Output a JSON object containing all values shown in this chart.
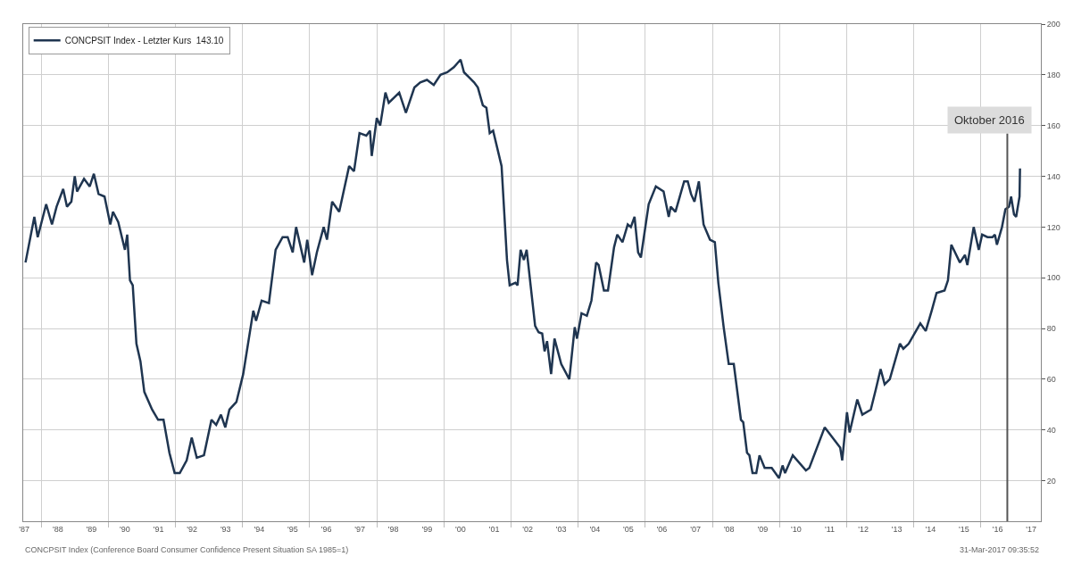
{
  "chart_data": {
    "type": "line",
    "series": [
      {
        "name": "CONCPSIT Index - Letzter Kurs  143.10",
        "color": "#1f3550",
        "x": [
          "1987-07-15",
          "1987-10-19",
          "1987-11-25",
          "1988-02-25",
          "1988-04-28",
          "1988-06-17",
          "1988-08-28",
          "1988-10-08",
          "1988-11-25",
          "1989-01-01",
          "1989-01-26",
          "1989-04-12",
          "1989-06-13",
          "1989-07-28",
          "1989-09-17",
          "1989-11-21",
          "1990-01-23",
          "1990-02-21",
          "1990-04-19",
          "1990-07-01",
          "1990-07-26",
          "1990-08-25",
          "1990-09-24",
          "1990-11-03",
          "1990-12-17",
          "1991-01-28",
          "1991-04-23",
          "1991-06-27",
          "1991-08-25",
          "1991-10-28",
          "1991-12-24",
          "1992-02-18",
          "1992-05-03",
          "1992-06-27",
          "1992-08-21",
          "1992-11-07",
          "1993-01-28",
          "1993-03-20",
          "1993-05-11",
          "1993-06-27",
          "1993-08-11",
          "1993-10-26",
          "1994-01-08",
          "1994-04-28",
          "1994-05-28",
          "1994-07-28",
          "1994-10-15",
          "1994-12-27",
          "1995-03-13",
          "1995-05-07",
          "1995-07-01",
          "1995-08-07",
          "1995-11-03",
          "1995-12-06",
          "1996-01-28",
          "1996-03-20",
          "1996-06-02",
          "1996-07-08",
          "1996-09-02",
          "1996-11-18",
          "1997-03-06",
          "1997-04-28",
          "1997-06-27",
          "1997-09-09",
          "1997-10-19",
          "1997-11-07",
          "1998-01-01",
          "1998-02-07",
          "1998-04-05",
          "1998-05-11",
          "1998-09-02",
          "1998-11-14",
          "1999-02-14",
          "1999-04-19",
          "1999-07-01",
          "1999-09-13",
          "1999-11-25",
          "2000-02-07",
          "2000-04-19",
          "2000-07-01",
          "2000-08-07",
          "2000-10-01",
          "2000-11-25",
          "2001-01-05",
          "2001-02-28",
          "2001-04-08",
          "2001-05-14",
          "2001-06-20",
          "2001-09-20",
          "2001-11-18",
          "2001-12-17",
          "2002-02-18",
          "2002-03-13",
          "2002-04-15",
          "2002-05-21",
          "2002-06-20",
          "2002-09-20",
          "2002-10-28",
          "2002-12-06",
          "2003-01-01",
          "2003-01-28",
          "2003-03-13",
          "2003-04-19",
          "2003-07-01",
          "2003-09-27",
          "2003-11-25",
          "2003-12-20",
          "2004-02-07",
          "2004-04-05",
          "2004-05-25",
          "2004-07-15",
          "2004-08-11",
          "2004-10-08",
          "2004-11-21",
          "2005-01-26",
          "2005-03-02",
          "2005-04-28",
          "2005-06-24",
          "2005-07-28",
          "2005-09-06",
          "2005-10-15",
          "2005-11-14",
          "2006-02-07",
          "2006-04-26",
          "2006-07-19",
          "2006-09-13",
          "2006-10-05",
          "2006-11-25",
          "2007-02-28",
          "2007-04-08",
          "2007-05-14",
          "2007-06-20",
          "2007-08-07",
          "2007-09-27",
          "2007-12-06",
          "2008-01-28",
          "2008-03-06",
          "2008-05-03",
          "2008-06-27",
          "2008-08-21",
          "2008-11-07",
          "2008-12-02",
          "2009-01-12",
          "2009-02-07",
          "2009-03-13",
          "2009-04-23",
          "2009-05-28",
          "2009-07-23",
          "2009-10-08",
          "2009-12-27",
          "2010-02-03",
          "2010-03-02",
          "2010-05-25",
          "2010-10-15",
          "2010-11-21",
          "2011-05-07",
          "2011-10-23",
          "2011-11-14",
          "2012-01-05",
          "2012-02-03",
          "2012-04-26",
          "2012-06-20",
          "2012-09-20",
          "2012-11-14",
          "2013-01-05",
          "2013-02-18",
          "2013-04-15",
          "2013-08-03",
          "2013-09-09",
          "2013-11-07",
          "2014-03-13",
          "2014-05-11",
          "2014-07-15",
          "2014-09-06",
          "2014-12-02",
          "2015-01-08",
          "2015-02-14",
          "2015-05-18",
          "2015-07-12",
          "2015-08-07",
          "2015-10-15",
          "2015-12-09",
          "2016-01-15",
          "2016-03-13",
          "2016-05-07",
          "2016-06-02",
          "2016-06-24",
          "2016-08-18",
          "2016-09-24",
          "2016-11-03",
          "2016-11-25",
          "2016-12-27",
          "2017-01-19",
          "2017-02-25",
          "2017-03-02"
        ],
        "values": [
          106,
          124,
          116,
          129,
          121,
          128,
          135,
          128,
          130,
          140,
          134,
          139,
          136,
          141,
          133,
          132,
          121,
          126,
          122,
          111,
          117,
          99,
          97,
          74,
          67,
          55,
          48,
          44,
          44,
          31,
          23,
          23,
          28,
          37,
          29,
          30,
          44,
          42,
          46,
          41,
          48,
          51,
          62,
          87,
          83,
          91,
          90,
          111,
          116,
          116,
          110,
          120,
          106,
          115,
          101,
          110,
          120,
          115,
          130,
          126,
          144,
          142,
          157,
          156,
          158,
          148,
          163,
          160,
          173,
          169,
          173,
          165,
          175,
          177,
          178,
          176,
          180,
          181,
          183,
          186,
          181,
          179,
          177,
          175,
          168,
          167,
          157,
          158,
          144,
          107,
          97,
          98,
          97,
          111,
          107,
          111,
          81,
          78.5,
          78,
          71,
          75,
          62,
          76,
          66,
          60,
          80.5,
          76,
          86,
          85,
          91,
          106,
          105,
          95,
          95,
          112,
          117,
          114,
          121,
          120,
          124,
          110,
          108,
          129,
          136,
          134,
          124,
          128,
          126,
          138,
          138,
          133,
          130,
          138,
          121,
          115,
          114,
          98,
          80.5,
          66,
          66,
          44,
          43,
          31,
          30,
          23,
          23,
          30,
          25,
          25,
          21,
          26,
          23,
          30,
          24,
          25,
          41,
          33,
          28,
          47,
          39,
          52,
          46,
          48,
          56,
          64,
          58,
          60,
          74,
          72,
          74,
          82,
          79,
          87,
          94,
          95,
          99,
          113,
          106,
          109,
          105,
          120,
          111,
          117,
          116,
          116,
          117,
          113,
          120,
          127,
          128,
          132,
          125,
          124,
          132,
          143.1
        ]
      }
    ],
    "xlim": [
      "1987-06-20",
      "2017-10-15"
    ],
    "ylim": [
      4,
      200
    ],
    "xticks": [
      {
        "value": "1987-07-01",
        "label": "'87"
      },
      {
        "value": "1988-07-01",
        "label": "'88"
      },
      {
        "value": "1989-07-01",
        "label": "'89"
      },
      {
        "value": "1990-07-01",
        "label": "'90"
      },
      {
        "value": "1991-07-01",
        "label": "'91"
      },
      {
        "value": "1992-07-01",
        "label": "'92"
      },
      {
        "value": "1993-07-01",
        "label": "'93"
      },
      {
        "value": "1994-07-01",
        "label": "'94"
      },
      {
        "value": "1995-07-01",
        "label": "'95"
      },
      {
        "value": "1996-07-01",
        "label": "'96"
      },
      {
        "value": "1997-07-01",
        "label": "'97"
      },
      {
        "value": "1998-07-01",
        "label": "'98"
      },
      {
        "value": "1999-07-01",
        "label": "'99"
      },
      {
        "value": "2000-07-01",
        "label": "'00"
      },
      {
        "value": "2001-07-01",
        "label": "'01"
      },
      {
        "value": "2002-07-01",
        "label": "'02"
      },
      {
        "value": "2003-07-01",
        "label": "'03"
      },
      {
        "value": "2004-07-01",
        "label": "'04"
      },
      {
        "value": "2005-07-01",
        "label": "'05"
      },
      {
        "value": "2006-07-01",
        "label": "'06"
      },
      {
        "value": "2007-07-01",
        "label": "'07"
      },
      {
        "value": "2008-07-01",
        "label": "'08"
      },
      {
        "value": "2009-07-01",
        "label": "'09"
      },
      {
        "value": "2010-07-01",
        "label": "'10"
      },
      {
        "value": "2011-07-01",
        "label": "'11"
      },
      {
        "value": "2012-07-01",
        "label": "'12"
      },
      {
        "value": "2013-07-01",
        "label": "'13"
      },
      {
        "value": "2014-07-01",
        "label": "'14"
      },
      {
        "value": "2015-07-01",
        "label": "'15"
      },
      {
        "value": "2016-07-01",
        "label": "'16"
      },
      {
        "value": "2017-07-01",
        "label": "'17"
      }
    ],
    "yticks": [
      20,
      40,
      60,
      80,
      100,
      120,
      140,
      160,
      180,
      200
    ],
    "grid": true,
    "legend": "top left",
    "marker": "none",
    "line_style": "solid",
    "ref_lines": [
      {
        "axis": "x",
        "value": "2016-10-15",
        "label": "Oktober 2016",
        "color": "#555555"
      }
    ],
    "annotations": [
      "CONCPSIT Index (Conference Board Consumer Confidence Present Situation SA 1985=1)",
      "31-Mar-2017 09:35:52"
    ]
  }
}
